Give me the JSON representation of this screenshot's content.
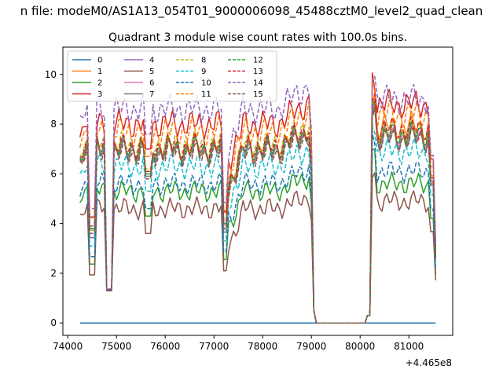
{
  "figure": {
    "suptitle": "n file: modeM0/AS1A13_054T01_9000006098_45488cztM0_level2_quad_clean",
    "title": "Quadrant 3 module wise count rates with 100.0s bins.",
    "x_offset_label": "+4.465e8"
  },
  "chart_data": {
    "type": "line",
    "title": "Quadrant 3 module wise count rates with 100.0s bins.",
    "xlabel": "",
    "ylabel": "",
    "x_offset": 446500000,
    "xlim": [
      73900,
      81900
    ],
    "ylim": [
      -0.5,
      11.1
    ],
    "xticks": [
      74000,
      75000,
      76000,
      77000,
      78000,
      79000,
      80000,
      81000
    ],
    "yticks": [
      0,
      2,
      4,
      6,
      8,
      10
    ],
    "grid": false,
    "legend": {
      "placement": "top-left",
      "columns": 4
    },
    "x_segments": [
      [
        74250,
        79050
      ],
      [
        79100,
        80100
      ],
      [
        80150,
        81550
      ]
    ],
    "series": [
      {
        "name": "0",
        "color": "#1f77b4",
        "dash": "solid",
        "level": 0.0,
        "amp": 0.0,
        "dip": 0.0,
        "post": 0.0
      },
      {
        "name": "1",
        "color": "#ff7f0e",
        "dash": "solid",
        "level": 7.0,
        "amp": 0.4,
        "dip": 1.2,
        "post": 7.9
      },
      {
        "name": "2",
        "color": "#2ca02c",
        "dash": "solid",
        "level": 5.3,
        "amp": 0.3,
        "dip": 1.1,
        "post": 5.6
      },
      {
        "name": "3",
        "color": "#d62728",
        "dash": "solid",
        "level": 8.0,
        "amp": 0.4,
        "dip": 1.4,
        "post": 8.8
      },
      {
        "name": "4",
        "color": "#9467bd",
        "dash": "solid",
        "level": 7.0,
        "amp": 0.35,
        "dip": 1.2,
        "post": 7.6
      },
      {
        "name": "5",
        "color": "#8c564b",
        "dash": "solid",
        "level": 4.6,
        "amp": 0.3,
        "dip": 1.0,
        "post": 4.9
      },
      {
        "name": "6",
        "color": "#e377c2",
        "dash": "solid",
        "level": 6.9,
        "amp": 0.35,
        "dip": 1.3,
        "post": 7.5
      },
      {
        "name": "7",
        "color": "#7f7f7f",
        "dash": "solid",
        "level": 6.9,
        "amp": 0.35,
        "dip": 1.3,
        "post": 7.4
      },
      {
        "name": "8",
        "color": "#bcbd22",
        "dash": "dashed",
        "level": 7.2,
        "amp": 0.35,
        "dip": 1.3,
        "post": 7.7
      },
      {
        "name": "9",
        "color": "#17becf",
        "dash": "dashed",
        "level": 6.3,
        "amp": 0.35,
        "dip": 1.2,
        "post": 6.9
      },
      {
        "name": "10",
        "color": "#1f77b4",
        "dash": "dashed",
        "level": 5.6,
        "amp": 0.3,
        "dip": 1.1,
        "post": 6.1
      },
      {
        "name": "11",
        "color": "#ff7f0e",
        "dash": "dashed",
        "level": 7.7,
        "amp": 0.4,
        "dip": 1.3,
        "post": 8.4
      },
      {
        "name": "12",
        "color": "#2ca02c",
        "dash": "dashed",
        "level": 7.0,
        "amp": 0.35,
        "dip": 1.2,
        "post": 7.6
      },
      {
        "name": "13",
        "color": "#d62728",
        "dash": "dashed",
        "level": 7.1,
        "amp": 0.35,
        "dip": 1.2,
        "post": 7.8
      },
      {
        "name": "14",
        "color": "#9467bd",
        "dash": "dashed",
        "level": 8.6,
        "amp": 0.4,
        "dip": 1.5,
        "post": 9.0
      },
      {
        "name": "15",
        "color": "#8c564b",
        "dash": "dashed",
        "level": 6.8,
        "amp": 0.35,
        "dip": 1.2,
        "post": 7.4
      }
    ]
  }
}
